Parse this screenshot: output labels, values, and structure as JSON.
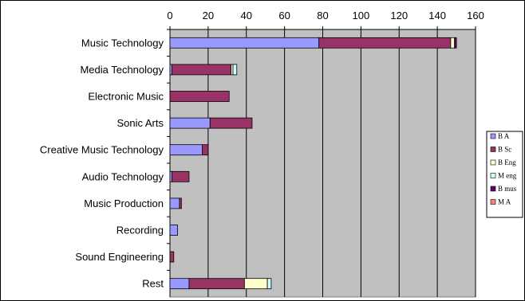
{
  "chart_data": {
    "type": "bar",
    "orientation": "horizontal",
    "stacked": true,
    "categories": [
      "Music Technology",
      "Media Technology",
      "Electronic Music",
      "Sonic Arts",
      "Creative Music Technology",
      "Audio Technology",
      "Music Production",
      "Recording",
      "Sound Engineering",
      "Rest"
    ],
    "x_ticks": [
      0,
      20,
      40,
      60,
      80,
      100,
      120,
      140,
      160
    ],
    "xlim": [
      0,
      160
    ],
    "grid": "vertical",
    "plot_background": "#c0c0c0",
    "legend_position": "right",
    "series": [
      {
        "name": "B A",
        "color": "#9999ff",
        "values": [
          78,
          1,
          0,
          21,
          17,
          1,
          5,
          4,
          0,
          10
        ]
      },
      {
        "name": "B Sc",
        "color": "#993366",
        "values": [
          69,
          31,
          31,
          22,
          3,
          9,
          1,
          0,
          2,
          29
        ]
      },
      {
        "name": "B Eng",
        "color": "#ffffcc",
        "values": [
          2,
          1,
          0,
          0,
          0,
          0,
          0,
          0,
          0,
          12
        ]
      },
      {
        "name": "M eng",
        "color": "#ccffff",
        "values": [
          0,
          2,
          0,
          0,
          0,
          0,
          0,
          0,
          0,
          2
        ]
      },
      {
        "name": "B mus",
        "color": "#660066",
        "values": [
          1,
          0,
          0,
          0,
          0,
          0,
          0,
          0,
          0,
          0
        ]
      },
      {
        "name": "M A",
        "color": "#ff8080",
        "values": [
          0,
          0,
          0,
          0,
          0,
          0,
          0,
          0,
          0,
          0
        ]
      }
    ]
  }
}
